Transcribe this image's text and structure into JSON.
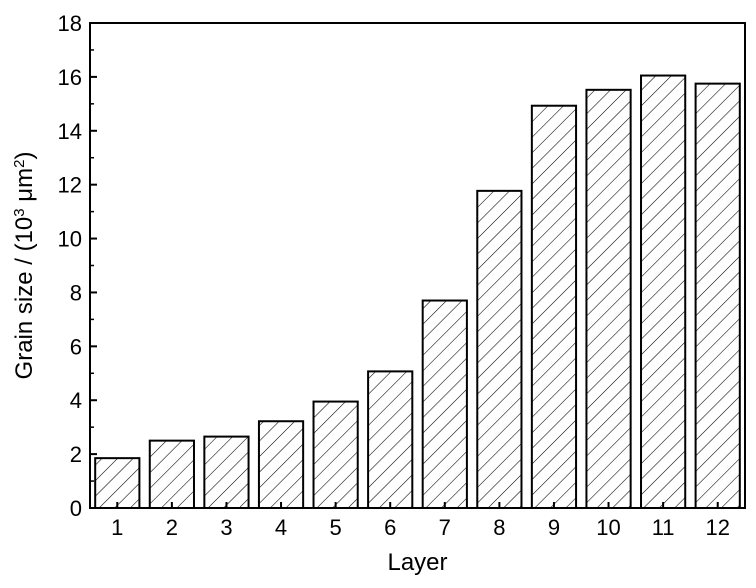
{
  "chart_data": {
    "type": "bar",
    "categories": [
      "1",
      "2",
      "3",
      "4",
      "5",
      "6",
      "7",
      "8",
      "9",
      "10",
      "11",
      "12"
    ],
    "values": [
      1.85,
      2.5,
      2.65,
      3.22,
      3.95,
      5.07,
      7.7,
      11.77,
      14.93,
      15.52,
      16.05,
      15.75
    ],
    "xlabel": "Layer",
    "ylabel": {
      "prefix": "Grain size / (10",
      "exp1": "3",
      "mid": " μm",
      "exp2": "2",
      "suffix": ")"
    },
    "ylim": [
      0,
      18
    ],
    "yticks": [
      0,
      2,
      4,
      6,
      8,
      10,
      12,
      14,
      16,
      18
    ],
    "bar_fill": "diagonal hatch",
    "bar_color": "#000000",
    "background": "#ffffff",
    "grid": false,
    "legend": "none"
  }
}
